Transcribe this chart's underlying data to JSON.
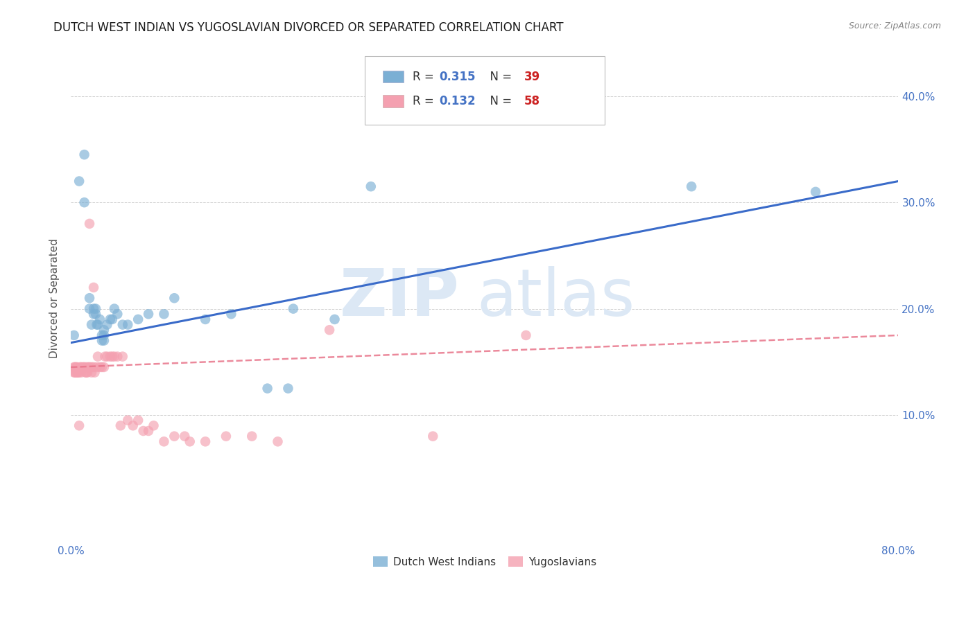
{
  "title": "DUTCH WEST INDIAN VS YUGOSLAVIAN DIVORCED OR SEPARATED CORRELATION CHART",
  "source": "Source: ZipAtlas.com",
  "ylabel": "Divorced or Separated",
  "ytick_labels_right": [
    "10.0%",
    "20.0%",
    "30.0%",
    "40.0%"
  ],
  "ytick_values": [
    0.1,
    0.2,
    0.3,
    0.4
  ],
  "xmin": 0.0,
  "xmax": 0.8,
  "ymin": -0.02,
  "ymax": 0.44,
  "legend_r1": "R = 0.315",
  "legend_n1": "N = 39",
  "legend_r2": "R = 0.132",
  "legend_n2": "N = 58",
  "blue_scatter_x": [
    0.003,
    0.008,
    0.013,
    0.013,
    0.018,
    0.018,
    0.02,
    0.022,
    0.022,
    0.024,
    0.024,
    0.025,
    0.026,
    0.028,
    0.03,
    0.03,
    0.032,
    0.032,
    0.032,
    0.035,
    0.038,
    0.04,
    0.042,
    0.045,
    0.05,
    0.055,
    0.065,
    0.075,
    0.09,
    0.1,
    0.13,
    0.155,
    0.19,
    0.21,
    0.215,
    0.255,
    0.29,
    0.6,
    0.72
  ],
  "blue_scatter_y": [
    0.175,
    0.32,
    0.345,
    0.3,
    0.2,
    0.21,
    0.185,
    0.2,
    0.195,
    0.195,
    0.2,
    0.185,
    0.185,
    0.19,
    0.17,
    0.175,
    0.17,
    0.175,
    0.18,
    0.185,
    0.19,
    0.19,
    0.2,
    0.195,
    0.185,
    0.185,
    0.19,
    0.195,
    0.195,
    0.21,
    0.19,
    0.195,
    0.125,
    0.125,
    0.2,
    0.19,
    0.315,
    0.315,
    0.31
  ],
  "pink_scatter_x": [
    0.003,
    0.003,
    0.004,
    0.004,
    0.005,
    0.005,
    0.006,
    0.006,
    0.007,
    0.008,
    0.008,
    0.009,
    0.01,
    0.01,
    0.012,
    0.013,
    0.014,
    0.015,
    0.015,
    0.016,
    0.017,
    0.018,
    0.018,
    0.02,
    0.02,
    0.022,
    0.022,
    0.023,
    0.025,
    0.026,
    0.028,
    0.03,
    0.032,
    0.033,
    0.035,
    0.038,
    0.04,
    0.042,
    0.045,
    0.048,
    0.05,
    0.055,
    0.06,
    0.065,
    0.07,
    0.075,
    0.08,
    0.09,
    0.1,
    0.11,
    0.115,
    0.13,
    0.15,
    0.175,
    0.2,
    0.25,
    0.35,
    0.44
  ],
  "pink_scatter_y": [
    0.14,
    0.145,
    0.14,
    0.145,
    0.14,
    0.145,
    0.14,
    0.145,
    0.14,
    0.14,
    0.09,
    0.145,
    0.14,
    0.145,
    0.145,
    0.145,
    0.14,
    0.14,
    0.145,
    0.14,
    0.145,
    0.145,
    0.28,
    0.14,
    0.145,
    0.145,
    0.22,
    0.14,
    0.145,
    0.155,
    0.145,
    0.145,
    0.145,
    0.155,
    0.155,
    0.155,
    0.155,
    0.155,
    0.155,
    0.09,
    0.155,
    0.095,
    0.09,
    0.095,
    0.085,
    0.085,
    0.09,
    0.075,
    0.08,
    0.08,
    0.075,
    0.075,
    0.08,
    0.08,
    0.075,
    0.18,
    0.08,
    0.175
  ],
  "blue_line_x0": 0.0,
  "blue_line_x1": 0.8,
  "blue_line_y0": 0.168,
  "blue_line_y1": 0.32,
  "pink_line_x0": 0.0,
  "pink_line_x1": 0.8,
  "pink_line_y0": 0.145,
  "pink_line_y1": 0.175,
  "blue_scatter_color": "#7bafd4",
  "pink_scatter_color": "#f4a0b0",
  "blue_line_color": "#3a6bc9",
  "pink_line_color": "#e8748a",
  "background_color": "#ffffff",
  "grid_color": "#d0d0d0",
  "title_fontsize": 12,
  "tick_fontsize": 11,
  "legend_fontsize": 12,
  "watermark_zip": "ZIP",
  "watermark_atlas": "atlas",
  "watermark_color": "#dce8f5",
  "axis_tick_color": "#4472c4",
  "ylabel_color": "#555555",
  "ylabel_fontsize": 11
}
